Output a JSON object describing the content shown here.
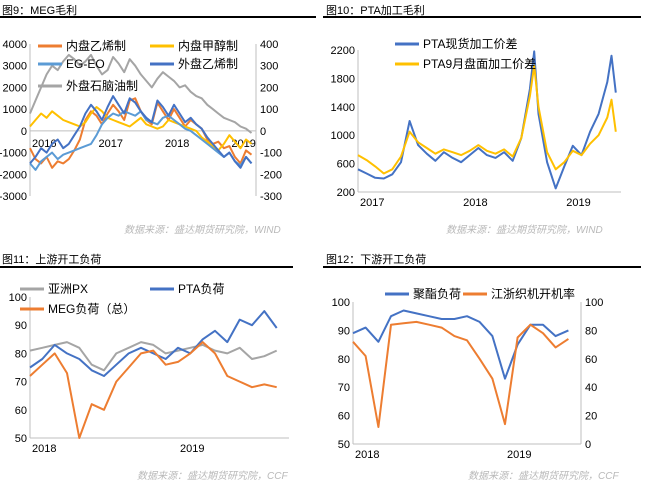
{
  "panels": [
    {
      "title": "图9：MEG毛利",
      "source": "数据来源：盛达期货研究院，WIND"
    },
    {
      "title": "图10：PTA加工毛利",
      "source": "数据来源：盛达期货研究院，WIND"
    },
    {
      "title": "图11：上游开工负荷",
      "source": "数据来源：盛达期货研究院，CCF"
    },
    {
      "title": "图12：下游开工负荷",
      "source": "数据来源：盛达期货研究院，CCF"
    }
  ],
  "colors": {
    "blue": "#4472c4",
    "orange": "#ed7d31",
    "yellow": "#ffc000",
    "gray": "#a5a5a5",
    "lightblue": "#5b9bd5"
  },
  "chart_data": [
    {
      "type": "line",
      "xlabels": [
        "2016",
        "2017",
        "2018",
        "2019"
      ],
      "x": [
        0,
        0.083,
        0.167,
        0.25,
        0.333,
        0.417,
        0.5,
        0.583,
        0.667,
        0.75,
        0.833,
        0.917,
        1,
        1.083,
        1.167,
        1.25,
        1.333,
        1.417,
        1.5,
        1.583,
        1.667,
        1.75,
        1.833,
        1.917,
        2,
        2.083,
        2.167,
        2.25,
        2.333,
        2.417,
        2.5,
        2.583,
        2.667,
        2.75,
        2.833,
        2.917,
        3,
        3.083,
        3.167,
        3.25,
        3.333
      ],
      "left_axis": {
        "ylim": [
          -3000,
          4000
        ],
        "ticks": [
          -3000,
          -2000,
          -1000,
          0,
          1000,
          2000,
          3000,
          4000
        ]
      },
      "right_axis": {
        "ylim": [
          -300,
          400
        ],
        "ticks": [
          -300,
          -200,
          -100,
          0,
          100,
          200,
          300,
          400
        ]
      },
      "series": [
        {
          "name": "内盘乙烯制",
          "color": "#ed7d31",
          "axis": "left",
          "values": [
            -800,
            -1300,
            -1500,
            -1200,
            -1700,
            -1400,
            -1500,
            -1300,
            -900,
            -400,
            500,
            900,
            700,
            300,
            800,
            1200,
            900,
            500,
            1400,
            1500,
            900,
            500,
            300,
            1300,
            900,
            500,
            1000,
            600,
            200,
            500,
            300,
            100,
            -400,
            -600,
            -500,
            -800,
            -700,
            -1200,
            -1500,
            -900,
            -1100
          ]
        },
        {
          "name": "内盘甲醇制",
          "color": "#ffc000",
          "axis": "left",
          "values": [
            200,
            500,
            800,
            600,
            900,
            700,
            500,
            400,
            300,
            200,
            400,
            800,
            1100,
            900,
            600,
            500,
            400,
            300,
            200,
            400,
            600,
            300,
            200,
            100,
            200,
            500,
            400,
            300,
            200,
            100,
            0,
            -300,
            -500,
            -700,
            -900,
            -600,
            -200,
            -500,
            -800,
            -400,
            -600
          ]
        },
        {
          "name": "EG-EO",
          "color": "#5b9bd5",
          "axis": "left",
          "values": [
            -1500,
            -1800,
            -1400,
            -1200,
            -1000,
            -1300,
            -1100,
            -1000,
            -900,
            -800,
            -700,
            -600,
            -200,
            300,
            600,
            800,
            700,
            900,
            800,
            700,
            900,
            500,
            400,
            300,
            600,
            700,
            500,
            300,
            100,
            0,
            -200,
            -400,
            -600,
            -800,
            -1000,
            -1200,
            -1000,
            -1400,
            -1600,
            -1200,
            -1500
          ]
        },
        {
          "name": "外盘乙烯制",
          "color": "#4472c4",
          "axis": "right",
          "values": [
            -150,
            -120,
            -80,
            -100,
            -60,
            -40,
            -80,
            -60,
            -20,
            20,
            80,
            120,
            90,
            50,
            110,
            160,
            120,
            80,
            150,
            130,
            90,
            60,
            40,
            140,
            110,
            70,
            120,
            80,
            40,
            60,
            30,
            10,
            -30,
            -60,
            -90,
            -120,
            -100,
            -140,
            -170,
            -120,
            -150
          ]
        },
        {
          "name": "外盘石脑油制",
          "color": "#a5a5a5",
          "axis": "right",
          "values": [
            80,
            140,
            200,
            260,
            300,
            280,
            320,
            350,
            330,
            300,
            320,
            350,
            300,
            260,
            280,
            340,
            310,
            270,
            330,
            300,
            260,
            230,
            200,
            240,
            270,
            250,
            230,
            200,
            210,
            180,
            160,
            150,
            120,
            100,
            80,
            60,
            50,
            40,
            20,
            10,
            -10
          ]
        }
      ]
    },
    {
      "type": "line",
      "xlabels": [
        "2017",
        "2018",
        "2019"
      ],
      "x": [
        0,
        0.083,
        0.167,
        0.25,
        0.333,
        0.417,
        0.5,
        0.583,
        0.667,
        0.75,
        0.833,
        0.917,
        1,
        1.083,
        1.167,
        1.25,
        1.333,
        1.417,
        1.5,
        1.583,
        1.667,
        1.708,
        1.75,
        1.833,
        1.917,
        2,
        2.083,
        2.167,
        2.25,
        2.333,
        2.417,
        2.458,
        2.5
      ],
      "ylim": [
        200,
        2200
      ],
      "ticks": [
        200,
        600,
        1000,
        1400,
        1800,
        2200
      ],
      "series": [
        {
          "name": "PTA现货加工价差",
          "color": "#4472c4",
          "values": [
            520,
            460,
            400,
            390,
            450,
            620,
            1200,
            860,
            740,
            640,
            760,
            680,
            620,
            720,
            820,
            720,
            680,
            760,
            640,
            960,
            1650,
            2180,
            1300,
            620,
            250,
            560,
            850,
            720,
            1050,
            1300,
            1750,
            2120,
            1600
          ]
        },
        {
          "name": "PTA9月盘面加工价差",
          "color": "#ffc000",
          "values": [
            720,
            650,
            560,
            460,
            520,
            700,
            1050,
            900,
            820,
            740,
            800,
            760,
            720,
            780,
            860,
            780,
            740,
            800,
            700,
            960,
            1550,
            1980,
            1400,
            760,
            520,
            620,
            780,
            720,
            880,
            1000,
            1250,
            1500,
            1050
          ]
        }
      ]
    },
    {
      "type": "line",
      "xlabels": [
        "2018",
        "2019"
      ],
      "x": [
        0,
        0.083,
        0.167,
        0.25,
        0.333,
        0.417,
        0.5,
        0.583,
        0.667,
        0.75,
        0.833,
        0.917,
        1,
        1.083,
        1.167,
        1.25,
        1.333,
        1.417,
        1.5,
        1.583,
        1.667
      ],
      "ylim": [
        50,
        100
      ],
      "ticks": [
        50,
        60,
        70,
        80,
        90,
        100
      ],
      "series": [
        {
          "name": "亚洲PX",
          "color": "#a5a5a5",
          "values": [
            81,
            82,
            83,
            84,
            82,
            76,
            74,
            80,
            82,
            84,
            83,
            80,
            81,
            82,
            83,
            81,
            80,
            82,
            78,
            79,
            81
          ]
        },
        {
          "name": "PTA负荷",
          "color": "#4472c4",
          "values": [
            75,
            78,
            83,
            80,
            78,
            74,
            72,
            76,
            80,
            82,
            80,
            78,
            82,
            80,
            85,
            88,
            84,
            92,
            90,
            95,
            89
          ]
        },
        {
          "name": "MEG负荷（总）",
          "color": "#ed7d31",
          "values": [
            72,
            76,
            80,
            73,
            50,
            62,
            60,
            70,
            75,
            80,
            81,
            76,
            77,
            80,
            84,
            80,
            72,
            70,
            68,
            69,
            68
          ]
        }
      ]
    },
    {
      "type": "line",
      "xlabels": [
        "2018",
        "2019"
      ],
      "x": [
        0,
        0.083,
        0.167,
        0.25,
        0.333,
        0.417,
        0.5,
        0.583,
        0.667,
        0.75,
        0.833,
        0.917,
        1,
        1.083,
        1.167,
        1.25,
        1.333,
        1.417
      ],
      "left_axis": {
        "ylim": [
          50,
          100
        ],
        "ticks": [
          50,
          60,
          70,
          80,
          90,
          100
        ]
      },
      "right_axis": {
        "ylim": [
          0,
          100
        ],
        "ticks": [
          0,
          20,
          40,
          60,
          80,
          100
        ]
      },
      "series": [
        {
          "name": "聚酯负荷",
          "color": "#4472c4",
          "axis": "left",
          "values": [
            89,
            91,
            86,
            95,
            97,
            96,
            95,
            94,
            94,
            95,
            93,
            88,
            73,
            85,
            92,
            92,
            88,
            90
          ]
        },
        {
          "name": "江浙织机开机率",
          "color": "#ed7d31",
          "axis": "right",
          "values": [
            72,
            62,
            12,
            84,
            85,
            86,
            84,
            82,
            76,
            73,
            60,
            46,
            14,
            75,
            84,
            78,
            68,
            74
          ]
        }
      ]
    }
  ]
}
